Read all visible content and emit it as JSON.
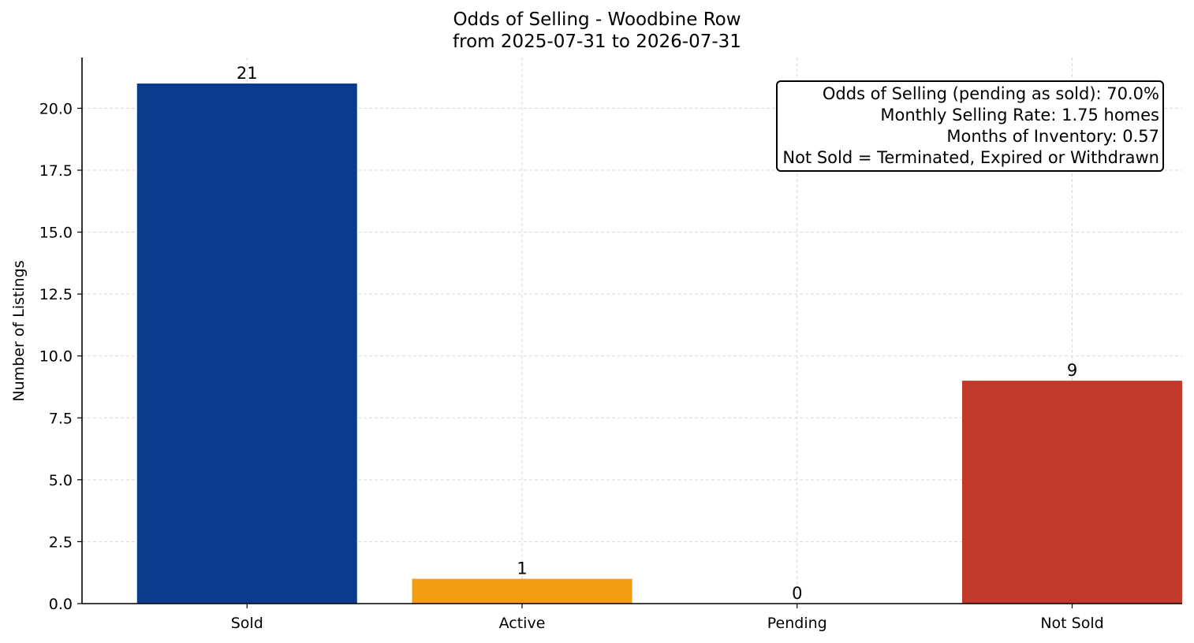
{
  "chart_data": {
    "type": "bar",
    "title": "Odds of Selling - Woodbine Row",
    "subtitle": "from 2025-07-31 to 2026-07-31",
    "xlabel": "",
    "ylabel": "Number of Listings",
    "categories": [
      "Sold",
      "Active",
      "Pending",
      "Not Sold"
    ],
    "values": [
      21,
      1,
      0,
      9
    ],
    "bar_labels": [
      "21",
      "1",
      "0",
      "9"
    ],
    "colors": [
      "#0b3b8c",
      "#f29c12",
      "#8e44ad",
      "#c0392b"
    ],
    "ylim": [
      0,
      22.05
    ],
    "yticks": [
      "0.0",
      "2.5",
      "5.0",
      "7.5",
      "10.0",
      "12.5",
      "15.0",
      "17.5",
      "20.0"
    ],
    "grid": true,
    "annotation_box_placement": "top-right"
  },
  "stats": {
    "line1": "Odds of Selling (pending as sold): 70.0%",
    "line2": "Monthly Selling Rate: 1.75 homes",
    "line3": "Months of Inventory: 0.57",
    "line4": "Not Sold = Terminated, Expired or Withdrawn"
  }
}
